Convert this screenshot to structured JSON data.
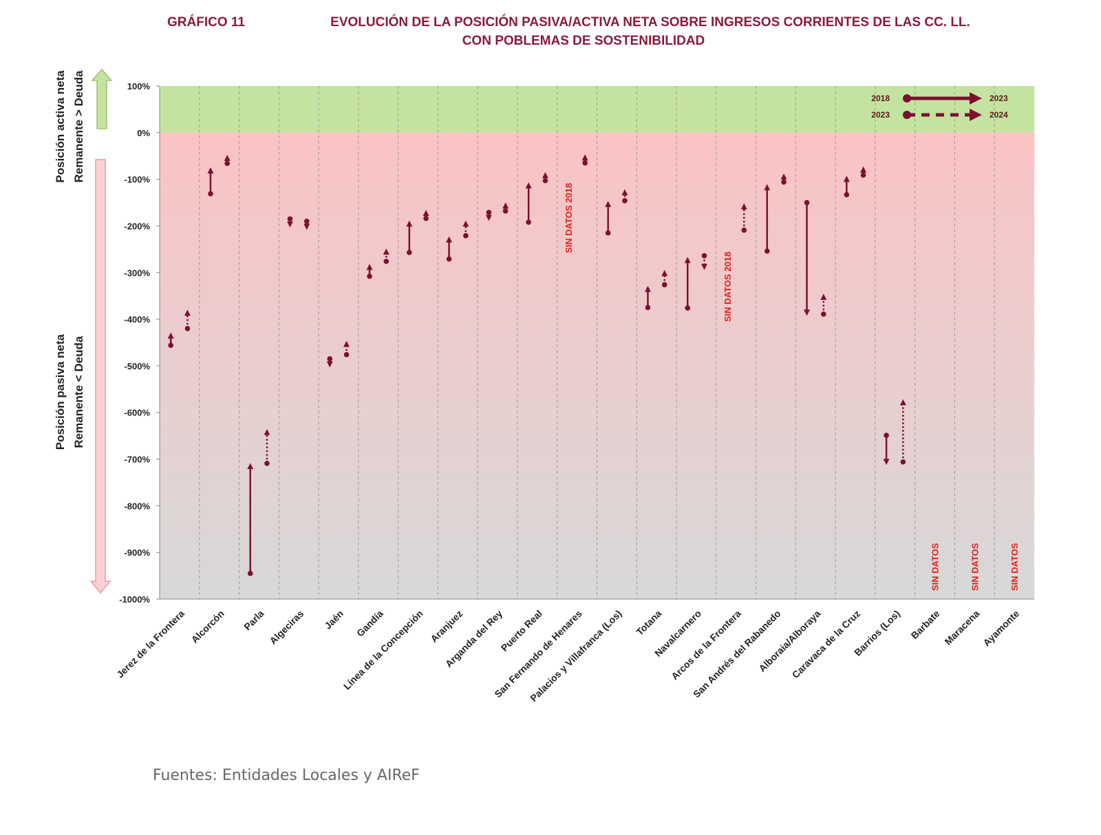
{
  "chart_data": {
    "type": "range-arrows",
    "title_label": "GRÁFICO 11",
    "title": "EVOLUCIÓN DE LA POSICIÓN PASIVA/ACTIVA NETA SOBRE INGRESOS CORRIENTES DE LAS CC. LL.",
    "title_line2": "CON POBLEMAS DE SOSTENIBILIDAD",
    "ylabel_top": [
      "Posición activa neta",
      "Remanente > Deuda"
    ],
    "ylabel_bottom": [
      "Posición pasiva neta",
      "Remanente < Deuda"
    ],
    "ylim": [
      -1000,
      100
    ],
    "yticks": [
      100,
      0,
      -100,
      -200,
      -300,
      -400,
      -500,
      -600,
      -700,
      -800,
      -900,
      -1000
    ],
    "ytick_labels": [
      "100%",
      "0%",
      "-100%",
      "-200%",
      "-300%",
      "-400%",
      "-500%",
      "-600%",
      "-700%",
      "-800%",
      "-900%",
      "-1000%"
    ],
    "colors": {
      "positive_band": "#c5e3a0",
      "negative_band_top": "#fbc3c4",
      "negative_band_bottom": "#d8d8d8",
      "arrow": "#7b1030",
      "no_data": "#e0201c"
    },
    "legend": {
      "solid_from": "2018",
      "solid_to": "2023",
      "dotted_from": "2023",
      "dotted_to": "2024",
      "placement": "top-right"
    },
    "no_data_label": "SIN DATOS",
    "no_data_2018_label": "SIN DATOS 2018",
    "categories": [
      "Jerez de la Frontera",
      "Alcorcón",
      "Parla",
      "Algeciras",
      "Jaén",
      "Gandía",
      "Línea de la Concepción",
      "Aranjuez",
      "Arganda del Rey",
      "Puerto Real",
      "San Fernando de Henares",
      "Palacios y Villafranca (Los)",
      "Totana",
      "Navalcarnero",
      "Arcos de la Frontera",
      "San Andrés del Rabanedo",
      "Alboraia/Alboraya",
      "Caravaca de la Cruz",
      "Barrios (Los)",
      "Barbate",
      "Maracena",
      "Ayamonte"
    ],
    "series": [
      {
        "name": "2018 → 2023",
        "style": "solid",
        "start": [
          -456,
          -131,
          -945,
          -185,
          -485,
          -308,
          -257,
          -271,
          -171,
          -192,
          null,
          -215,
          -375,
          -376,
          null,
          -254,
          -150,
          -133,
          -649,
          null,
          null,
          null
        ],
        "end": [
          -435,
          -81,
          -715,
          -193,
          -492,
          -288,
          -195,
          -229,
          -171,
          -113,
          null,
          -153,
          -335,
          -273,
          null,
          -117,
          -386,
          -99,
          -706,
          null,
          null,
          null
        ]
      },
      {
        "name": "2023 → 2024",
        "style": "dotted",
        "start": [
          -420,
          -66,
          -709,
          -190,
          -476,
          -276,
          -184,
          -221,
          -168,
          -103,
          -65,
          -146,
          -326,
          -264,
          -209,
          -106,
          -389,
          -91,
          -706,
          null,
          null,
          null
        ],
        "end": [
          -386,
          -58,
          -642,
          -195,
          -453,
          -255,
          -176,
          -195,
          -163,
          -99,
          -59,
          -128,
          -301,
          -288,
          -158,
          -100,
          -352,
          -87,
          -578,
          null,
          null,
          null
        ]
      }
    ]
  },
  "footer": {
    "source": "Fuentes: Entidades Locales y AIReF"
  }
}
